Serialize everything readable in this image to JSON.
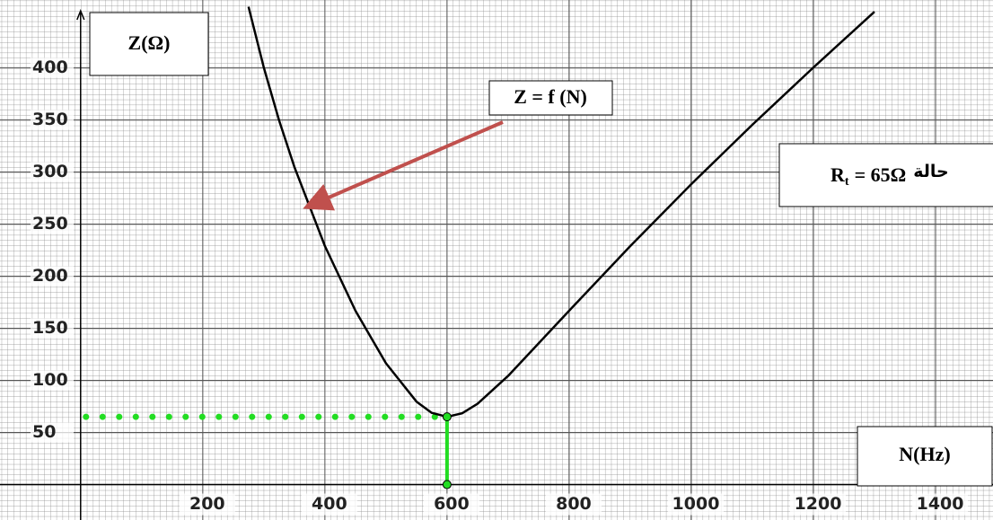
{
  "chart_data": {
    "type": "line",
    "y_label": "Z(Ω)",
    "x_label": "N(Hz)",
    "curve_label": "Z = f (N)",
    "annotation": {
      "symbol": "R",
      "subscript": "t",
      "value_text": "= 65Ω",
      "arabic": "حالة"
    },
    "x": [
      275,
      300,
      325,
      350,
      400,
      450,
      500,
      550,
      575,
      600,
      625,
      650,
      700,
      800,
      900,
      1000,
      1100,
      1200,
      1300
    ],
    "series": [
      {
        "name": "Z = f (N)",
        "color": "#000000",
        "values": [
          458.5,
          400.3,
          349.6,
          304.8,
          228.9,
          166.8,
          116.4,
          79.6,
          68.8,
          65,
          68.5,
          77.5,
          104.2,
          166.8,
          228.9,
          288.3,
          345.3,
          400.3,
          453.7
        ]
      }
    ],
    "resonance": {
      "x": 600,
      "y": 65,
      "color": "#22dd22"
    },
    "xlim": [
      -132,
      1494
    ],
    "ylim": [
      -34,
      465
    ],
    "xticks": [
      200,
      400,
      600,
      800,
      1000,
      1200,
      1400
    ],
    "yticks": [
      50,
      100,
      150,
      200,
      250,
      300,
      350,
      400
    ],
    "grid": true
  }
}
